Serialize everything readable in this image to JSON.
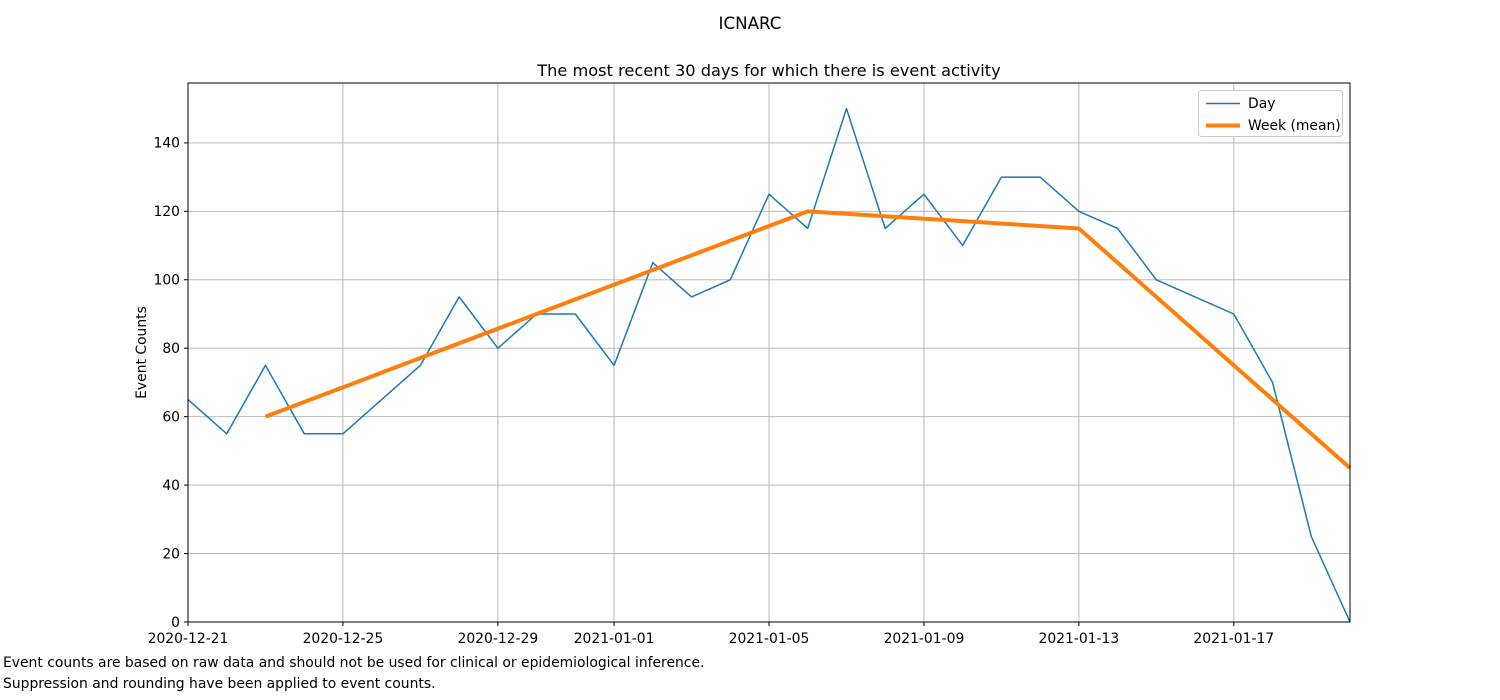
{
  "figure": {
    "suptitle": "ICNARC",
    "axes_title": "The most recent 30 days for which there is event activity",
    "ylabel": "Event Counts",
    "footnote_line1": "Event counts are based on raw data and should not be used for clinical or epidemiological inference.",
    "footnote_line2": "Suppression and rounding have been applied to event counts."
  },
  "colors": {
    "day_line": "#1f77b4",
    "week_line": "#ff7f0e",
    "grid": "#b0b0b0",
    "spine": "#000000",
    "legend_border": "#cccccc",
    "background": "#ffffff"
  },
  "legend": {
    "position": "upper right",
    "items": [
      {
        "label": "Day"
      },
      {
        "label": "Week (mean)"
      }
    ]
  },
  "chart_data": {
    "type": "line",
    "suptitle": "ICNARC",
    "title": "The most recent 30 days for which there is event activity",
    "xlabel": "",
    "ylabel": "Event Counts",
    "grid": true,
    "legend_position": "upper right",
    "xlim": [
      "2020-12-21",
      "2021-01-20"
    ],
    "ylim": [
      0,
      157.5
    ],
    "x_ticks": [
      "2020-12-21",
      "2020-12-25",
      "2020-12-29",
      "2021-01-01",
      "2021-01-05",
      "2021-01-09",
      "2021-01-13",
      "2021-01-17"
    ],
    "y_ticks": [
      0,
      20,
      40,
      60,
      80,
      100,
      120,
      140
    ],
    "series": [
      {
        "name": "Day",
        "color": "#1f77b4",
        "line_width": 1.5,
        "x": [
          "2020-12-21",
          "2020-12-22",
          "2020-12-23",
          "2020-12-24",
          "2020-12-25",
          "2020-12-26",
          "2020-12-27",
          "2020-12-28",
          "2020-12-29",
          "2020-12-30",
          "2020-12-31",
          "2021-01-01",
          "2021-01-02",
          "2021-01-03",
          "2021-01-04",
          "2021-01-05",
          "2021-01-06",
          "2021-01-07",
          "2021-01-08",
          "2021-01-09",
          "2021-01-10",
          "2021-01-11",
          "2021-01-12",
          "2021-01-13",
          "2021-01-14",
          "2021-01-15",
          "2021-01-16",
          "2021-01-17",
          "2021-01-18",
          "2021-01-19",
          "2021-01-20"
        ],
        "values": [
          65,
          55,
          75,
          55,
          55,
          65,
          75,
          95,
          80,
          90,
          90,
          75,
          105,
          95,
          100,
          125,
          115,
          150,
          115,
          125,
          110,
          130,
          130,
          120,
          115,
          100,
          95,
          90,
          70,
          25,
          0
        ]
      },
      {
        "name": "Week (mean)",
        "color": "#ff7f0e",
        "line_width": 4,
        "x": [
          "2020-12-23",
          "2020-12-30",
          "2021-01-06",
          "2021-01-13",
          "2021-01-20"
        ],
        "values": [
          60,
          90,
          120,
          115,
          45
        ]
      }
    ]
  }
}
